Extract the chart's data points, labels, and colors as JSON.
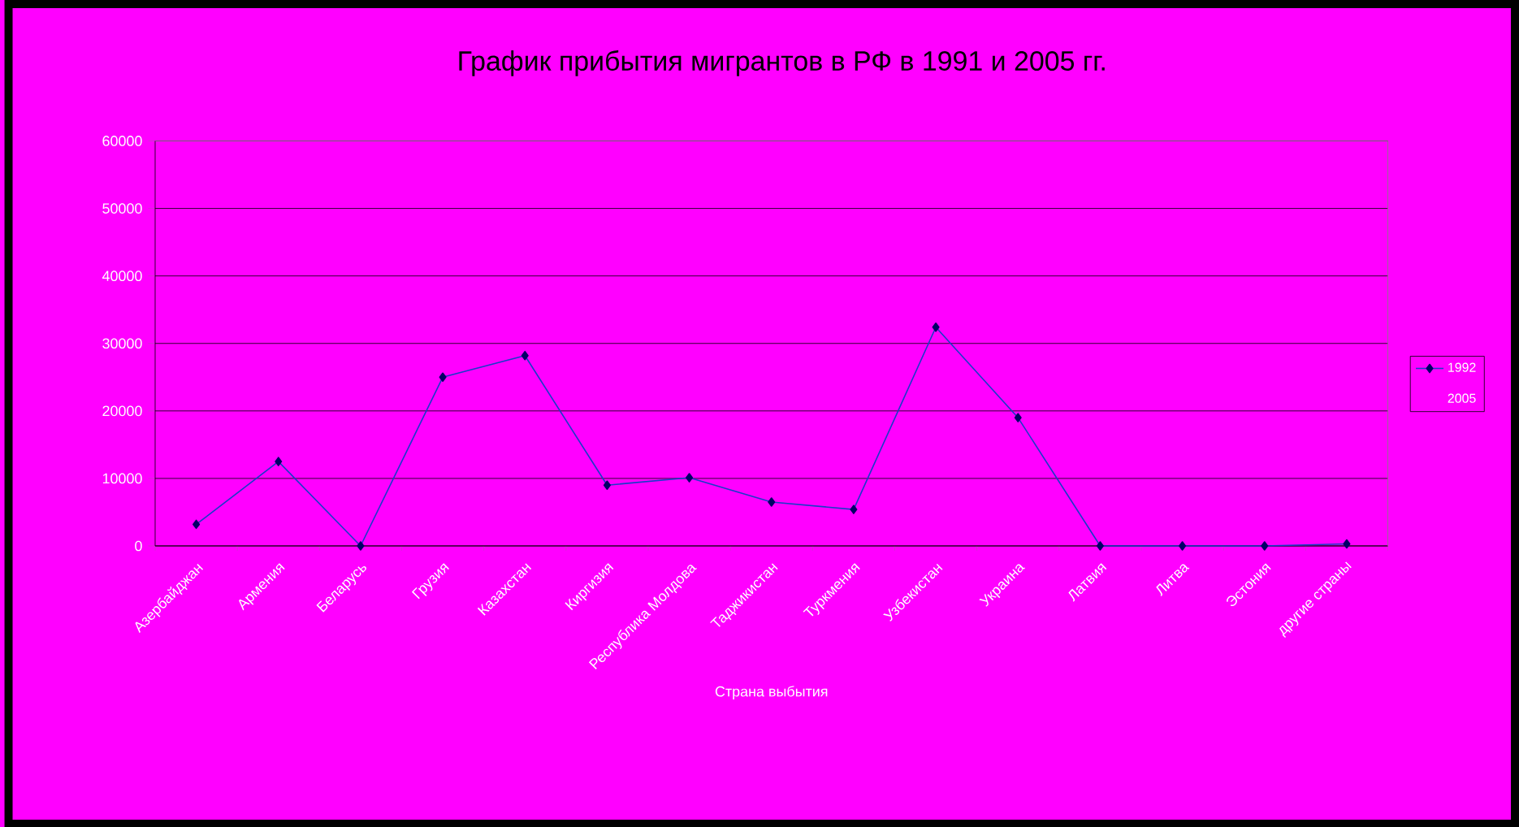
{
  "chart_data": {
    "type": "line",
    "title": "График прибытия мигрантов в РФ в 1991 и 2005 гг.",
    "xlabel": "Страна выбытия",
    "categories": [
      "Азербайджан",
      "Армения",
      "Беларусь",
      "Грузия",
      "Казахстан",
      "Киргизия",
      "Республика Молдова",
      "Таджикистан",
      "Туркмения",
      "Узбекистан",
      "Украина",
      "Латвия",
      "Литва",
      "Эстония",
      "другие страны"
    ],
    "series": [
      {
        "name": "1992",
        "color": "#1a3cc8",
        "values": [
          3200,
          12500,
          0,
          25000,
          28200,
          9000,
          10100,
          6500,
          5400,
          32400,
          19000,
          0,
          0,
          0,
          300
        ]
      },
      {
        "name": "2005",
        "color": null,
        "values": [
          null,
          null,
          null,
          null,
          null,
          null,
          null,
          null,
          null,
          null,
          null,
          null,
          null,
          null,
          null
        ]
      }
    ],
    "ylim": [
      0,
      60000
    ],
    "yticks": [
      0,
      10000,
      20000,
      30000,
      40000,
      50000,
      60000
    ],
    "grid": "y",
    "legend": "right",
    "marker": "diamond"
  }
}
